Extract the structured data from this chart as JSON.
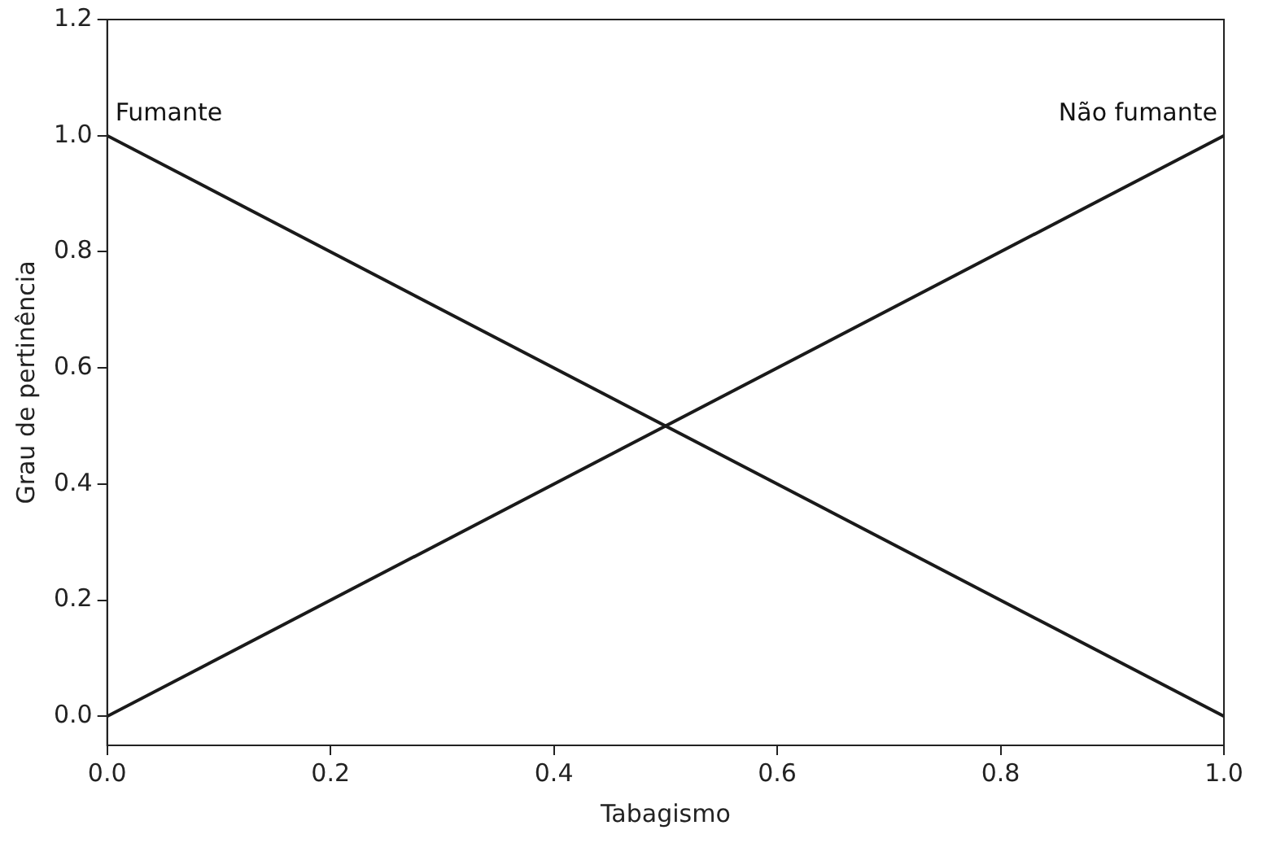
{
  "chart_data": {
    "type": "line",
    "xlabel": "Tabagismo",
    "ylabel": "Grau de pertinência",
    "x": [
      0,
      1
    ],
    "series": [
      {
        "name": "Fumante",
        "color": "#1a1a1a",
        "values": [
          1,
          0
        ]
      },
      {
        "name": "Não fumante",
        "color": "#1a1a1a",
        "values": [
          0,
          1
        ]
      }
    ],
    "xlim": [
      0,
      1
    ],
    "xticks": [
      {
        "value": 0,
        "label": "0.0"
      },
      {
        "value": 0.2,
        "label": "0.2"
      },
      {
        "value": 0.4,
        "label": "0.4"
      },
      {
        "value": 0.6,
        "label": "0.6"
      },
      {
        "value": 0.8,
        "label": "0.8"
      },
      {
        "value": 1,
        "label": "1.0"
      }
    ],
    "ylim": [
      -0.05,
      1.2
    ],
    "yticks": [
      {
        "value": 0,
        "label": "0.0"
      },
      {
        "value": 0.2,
        "label": "0.2"
      },
      {
        "value": 0.4,
        "label": "0.4"
      },
      {
        "value": 0.6,
        "label": "0.6"
      },
      {
        "value": 0.8,
        "label": "0.8"
      },
      {
        "value": 1,
        "label": "1.0"
      },
      {
        "value": 1.2,
        "label": "1.2"
      }
    ],
    "grid": false,
    "legend": false,
    "marker": "none",
    "line_style": "solid"
  }
}
